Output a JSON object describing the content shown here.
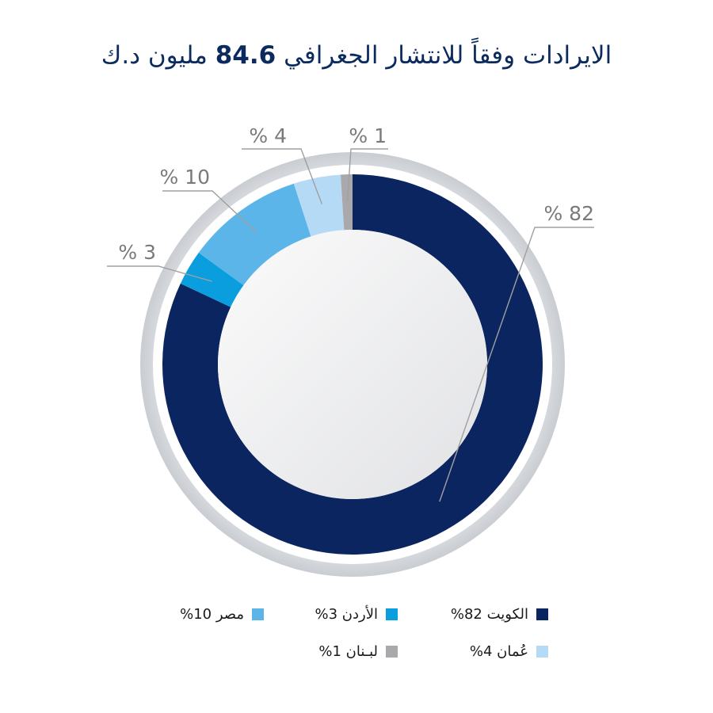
{
  "title": {
    "prefix": "الايرادات وفقاً للانتشار الجغرافي ",
    "amount": "84.6",
    "suffix": " مليون د.ك"
  },
  "chart_data": {
    "type": "pie",
    "donut": true,
    "title": "الايرادات وفقاً للانتشار الجغرافي 84.6 مليون د.ك",
    "unit": "%",
    "slices": [
      {
        "key": "kuwait",
        "label": "الكويت",
        "value": 82,
        "color": "#0b2560",
        "callout": "% 82",
        "legend": "الكويت 82%"
      },
      {
        "key": "jordan",
        "label": "الأردن",
        "value": 3,
        "color": "#0a9ede",
        "callout": "% 3",
        "legend": "الأردن  3%"
      },
      {
        "key": "egypt",
        "label": "مصر",
        "value": 10,
        "color": "#5bb5e8",
        "callout": "% 10",
        "legend": "مصر 10%"
      },
      {
        "key": "oman",
        "label": "عُمان",
        "value": 4,
        "color": "#b5daf5",
        "callout": "% 4",
        "legend": "عُمان 4%"
      },
      {
        "key": "lebanon",
        "label": "لبنان",
        "value": 1,
        "color": "#a9a9ab",
        "callout": "% 1",
        "legend": "لبـنان 1%"
      }
    ],
    "legend_placement": "bottom"
  }
}
